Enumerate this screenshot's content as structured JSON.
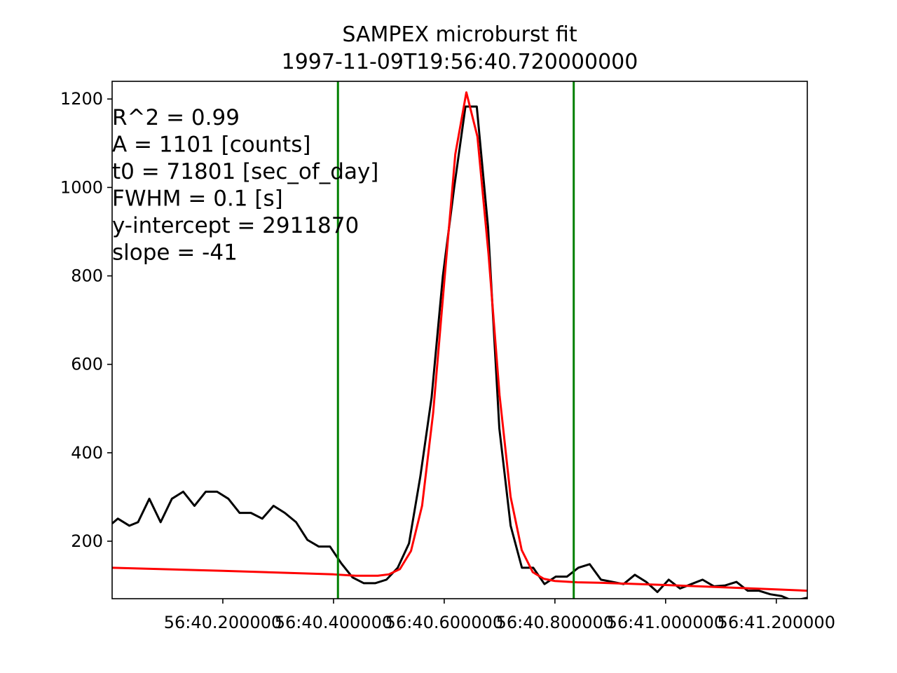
{
  "chart_data": {
    "type": "line",
    "title": "SAMPEX microburst fit",
    "subtitle": "1997-11-09T19:56:40.720000000",
    "xlabel": "",
    "ylabel": "",
    "xlim": [
      0.0,
      0.314
    ],
    "ylim": [
      70,
      1240
    ],
    "grid": false,
    "legend": "none",
    "x_tick_values": [
      0.05,
      0.1,
      0.15,
      0.2,
      0.25,
      0.3
    ],
    "x_tick_labels": [
      "56:40.200000",
      "56:40.400000",
      "56:40.600000",
      "56:40.800000",
      "56:41.000000",
      "56:41.200000"
    ],
    "y_ticks": [
      200,
      400,
      600,
      800,
      1000,
      1200
    ],
    "colors": {
      "data": "#000000",
      "fit": "#ff0000",
      "bounds": "#008000"
    },
    "vlines": [
      0.102,
      0.2085
    ],
    "series": [
      {
        "x": [
          0.0,
          0.0026,
          0.0078,
          0.0117,
          0.0168,
          0.0219,
          0.027,
          0.0321,
          0.0372,
          0.0423,
          0.0474,
          0.0525,
          0.0576,
          0.0627,
          0.0678,
          0.0729,
          0.078,
          0.0831,
          0.0882,
          0.0933,
          0.0984,
          0.1035,
          0.1086,
          0.1137,
          0.1188,
          0.1239,
          0.129,
          0.1341,
          0.1392,
          0.1443,
          0.1494,
          0.1545,
          0.1596,
          0.1647,
          0.1698,
          0.1749,
          0.18,
          0.1851,
          0.1902,
          0.1953,
          0.2004,
          0.2055,
          0.2106,
          0.2157,
          0.2208,
          0.2259,
          0.231,
          0.2361,
          0.2412,
          0.2463,
          0.2514,
          0.2565,
          0.2616,
          0.2667,
          0.2718,
          0.2769,
          0.282,
          0.2871,
          0.2922,
          0.2973,
          0.3024,
          0.3075,
          0.314
        ],
        "values": [
          240,
          251,
          235,
          243,
          296,
          243,
          296,
          312,
          280,
          312,
          312,
          296,
          264,
          264,
          251,
          280,
          264,
          243,
          203,
          188,
          188,
          150,
          118,
          105,
          105,
          113,
          140,
          195,
          346,
          525,
          800,
          1000,
          1183,
          1183,
          910,
          455,
          235,
          140,
          140,
          103,
          120,
          120,
          140,
          148,
          113,
          108,
          103,
          124,
          108,
          85,
          113,
          93,
          103,
          113,
          98,
          100,
          108,
          88,
          88,
          80,
          76,
          65,
          72
        ]
      },
      {
        "x": [
          0.0,
          0.05,
          0.1,
          0.11,
          0.12,
          0.125,
          0.13,
          0.135,
          0.14,
          0.145,
          0.15,
          0.155,
          0.16,
          0.165,
          0.17,
          0.175,
          0.18,
          0.185,
          0.19,
          0.195,
          0.2,
          0.21,
          0.22,
          0.25,
          0.3,
          0.314
        ],
        "values": [
          140,
          133,
          125,
          122,
          122,
          125,
          137,
          178,
          280,
          490,
          785,
          1075,
          1215,
          1115,
          850,
          530,
          300,
          180,
          130,
          115,
          110,
          107,
          106,
          101,
          91,
          88
        ]
      }
    ],
    "annotations": [
      "R^2 = 0.99",
      "A = 1101 [counts]",
      "t0 = 71801 [sec_of_day]",
      "FWHM = 0.1 [s]",
      "y-intercept = 2911870",
      "slope = -41"
    ]
  }
}
